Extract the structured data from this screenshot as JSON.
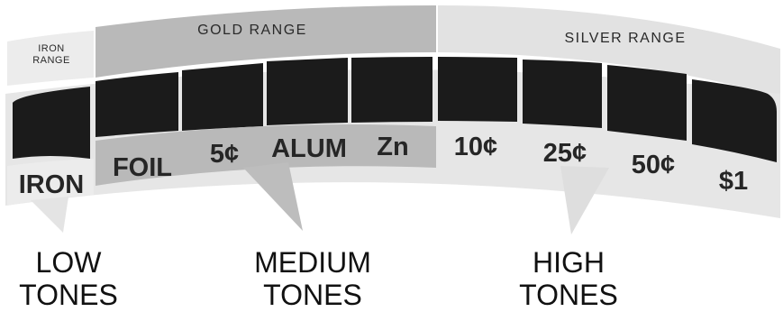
{
  "ranges": {
    "iron_line1": "IRON",
    "iron_line2": "RANGE",
    "gold": "GOLD RANGE",
    "silver": "SILVER RANGE"
  },
  "segments": [
    {
      "label": "IRON"
    },
    {
      "label": "FOIL"
    },
    {
      "label": "5¢"
    },
    {
      "label": "ALUM"
    },
    {
      "label": "Zn"
    },
    {
      "label": "10¢"
    },
    {
      "label": "25¢"
    },
    {
      "label": "50¢"
    },
    {
      "label": "$1"
    }
  ],
  "tones": {
    "low_line1": "LOW",
    "low_line2": "TONES",
    "medium_line1": "MEDIUM",
    "medium_line2": "TONES",
    "high_line1": "HIGH",
    "high_line2": "TONES"
  },
  "colors": {
    "iron_fill": "#ececec",
    "gold_fill": "#b9b9b9",
    "silver_fill": "#e2e2e2",
    "display_fill": "#1b1b1b",
    "callout_fill": "#c4c4c4"
  }
}
